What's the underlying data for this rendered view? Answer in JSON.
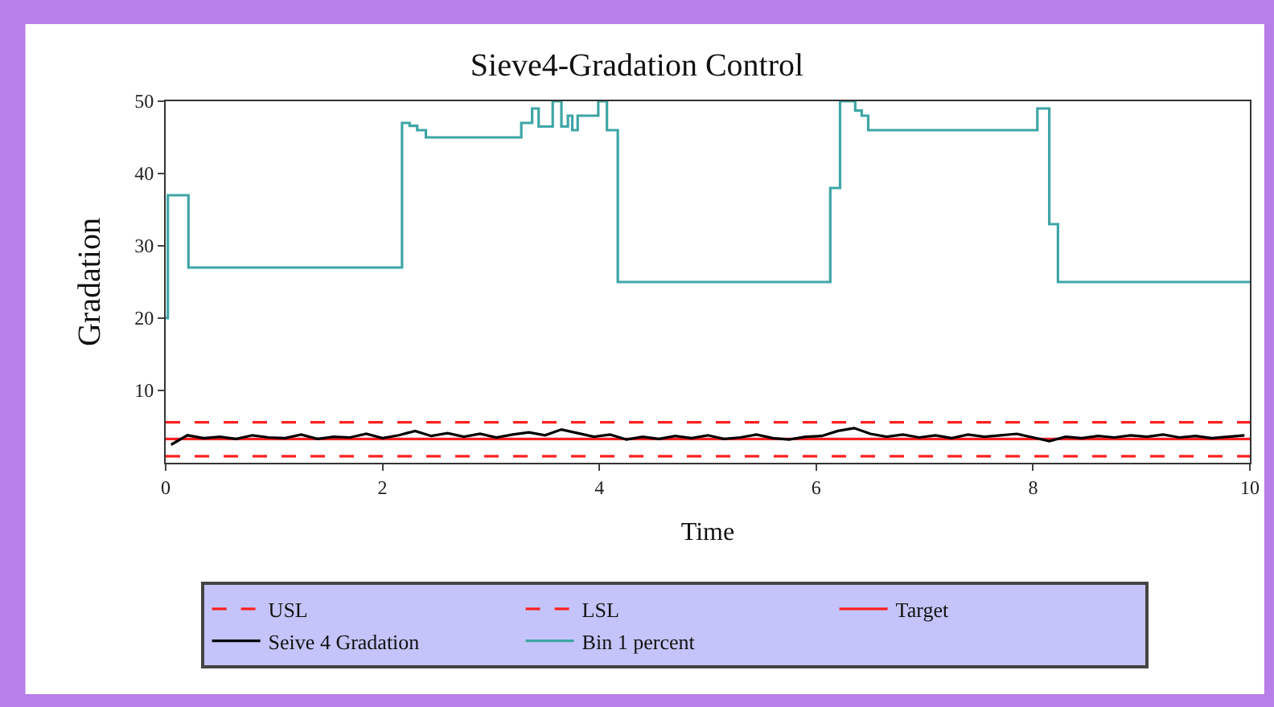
{
  "chart_data": {
    "type": "line",
    "title": "Sieve4-Gradation Control",
    "xlabel": "Time",
    "ylabel": "Gradation",
    "xlim": [
      0,
      10
    ],
    "xticks": [
      0,
      2,
      4,
      6,
      8,
      10
    ],
    "ylim": [
      0,
      50
    ],
    "yticks": [
      10,
      20,
      30,
      40,
      50
    ],
    "legend": "bottom",
    "marker": "none",
    "series": [
      {
        "name": "USL",
        "color": "#ff2020",
        "line_style": "dashed",
        "x": [
          0,
          10
        ],
        "values": [
          5.6,
          5.6
        ]
      },
      {
        "name": "LSL",
        "color": "#ff2020",
        "line_style": "dashed",
        "x": [
          0,
          10
        ],
        "values": [
          0.9,
          0.9
        ]
      },
      {
        "name": "Target",
        "color": "#ff2020",
        "line_style": "solid",
        "x": [
          0,
          10
        ],
        "values": [
          3.3,
          3.3
        ]
      },
      {
        "name": "Seive 4 Gradation",
        "color": "#000000",
        "line_style": "solid",
        "x": [
          0.05,
          0.2,
          0.35,
          0.5,
          0.65,
          0.8,
          0.95,
          1.1,
          1.25,
          1.4,
          1.55,
          1.7,
          1.85,
          2.0,
          2.15,
          2.3,
          2.45,
          2.6,
          2.75,
          2.9,
          3.05,
          3.2,
          3.35,
          3.5,
          3.65,
          3.8,
          3.95,
          4.1,
          4.25,
          4.4,
          4.55,
          4.7,
          4.85,
          5.0,
          5.15,
          5.3,
          5.45,
          5.6,
          5.75,
          5.9,
          6.05,
          6.2,
          6.35,
          6.5,
          6.65,
          6.8,
          6.95,
          7.1,
          7.25,
          7.4,
          7.55,
          7.7,
          7.85,
          8.0,
          8.15,
          8.3,
          8.45,
          8.6,
          8.75,
          8.9,
          9.05,
          9.2,
          9.35,
          9.5,
          9.65,
          9.8,
          9.95
        ],
        "values": [
          2.5,
          3.8,
          3.4,
          3.6,
          3.3,
          3.8,
          3.5,
          3.4,
          3.9,
          3.3,
          3.6,
          3.5,
          4.0,
          3.4,
          3.8,
          4.4,
          3.7,
          4.1,
          3.6,
          4.0,
          3.5,
          3.9,
          4.2,
          3.8,
          4.6,
          4.1,
          3.6,
          3.9,
          3.2,
          3.6,
          3.3,
          3.7,
          3.4,
          3.8,
          3.3,
          3.5,
          3.9,
          3.4,
          3.2,
          3.6,
          3.7,
          4.4,
          4.8,
          4.0,
          3.6,
          3.9,
          3.5,
          3.8,
          3.4,
          3.9,
          3.6,
          3.8,
          4.0,
          3.5,
          3.0,
          3.6,
          3.4,
          3.7,
          3.5,
          3.8,
          3.6,
          3.9,
          3.5,
          3.7,
          3.4,
          3.6,
          3.8
        ]
      },
      {
        "name": "Bin 1 percent",
        "color": "#3fa6a6",
        "type": "step",
        "x": [
          0,
          0.02,
          0.21,
          2.18,
          2.25,
          2.32,
          2.4,
          3.28,
          3.38,
          3.44,
          3.57,
          3.65,
          3.71,
          3.75,
          3.8,
          3.99,
          4.07,
          4.17,
          6.13,
          6.22,
          6.36,
          6.42,
          6.48,
          8.04,
          8.15,
          8.23,
          10
        ],
        "values": [
          20,
          37,
          27,
          47,
          46.6,
          46,
          45,
          47,
          49,
          46.5,
          50,
          46.5,
          48,
          46,
          48,
          50,
          46,
          25,
          38,
          50,
          48.7,
          48,
          46,
          49,
          33,
          25,
          25
        ]
      }
    ]
  }
}
